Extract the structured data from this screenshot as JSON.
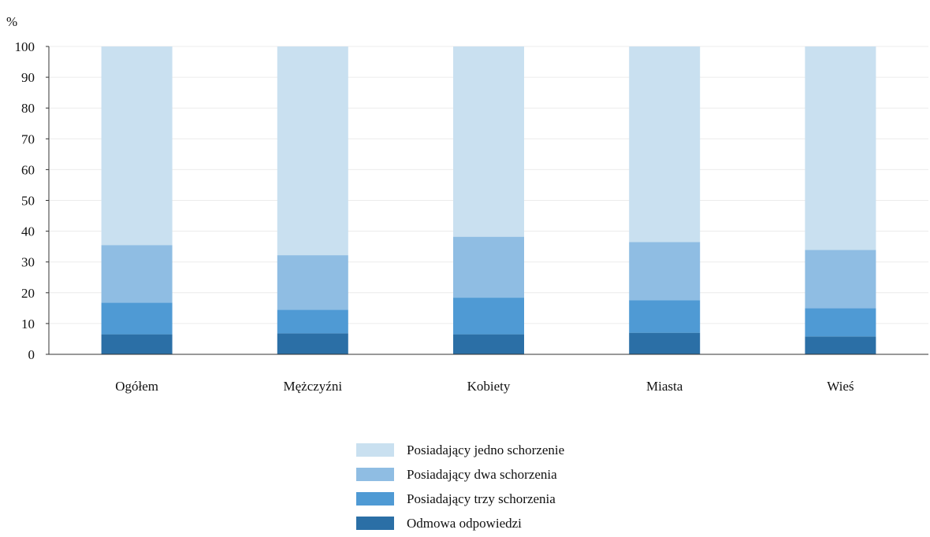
{
  "chart_data": {
    "type": "bar",
    "stacked": true,
    "ylabel": "%",
    "ylim": [
      0,
      100
    ],
    "yticks": [
      0,
      10,
      20,
      30,
      40,
      50,
      60,
      70,
      80,
      90,
      100
    ],
    "grid": true,
    "legend_position": "bottom",
    "categories": [
      "Ogółem",
      "Mężczyźni",
      "Kobiety",
      "Miasta",
      "Wieś"
    ],
    "series": [
      {
        "name": "Odmowa odpowiedzi",
        "color": "#2b6fa6",
        "values": [
          6.5,
          6.8,
          6.5,
          7.0,
          5.8
        ]
      },
      {
        "name": "Posiadający trzy schorzenia",
        "color": "#4f9ad4",
        "values": [
          10.3,
          7.7,
          11.9,
          10.6,
          9.2
        ]
      },
      {
        "name": "Posiadający dwa schorzenia",
        "color": "#8fbde3",
        "values": [
          18.7,
          17.7,
          19.8,
          18.9,
          18.9
        ]
      },
      {
        "name": "Posiadający jedno schorzenie",
        "color": "#c9e0f0",
        "values": [
          64.5,
          67.8,
          61.8,
          63.5,
          66.1
        ]
      }
    ],
    "legend_order": [
      "Posiadający jedno schorzenie",
      "Posiadający dwa schorzenia",
      "Posiadający trzy schorzenia",
      "Odmowa odpowiedzi"
    ]
  }
}
